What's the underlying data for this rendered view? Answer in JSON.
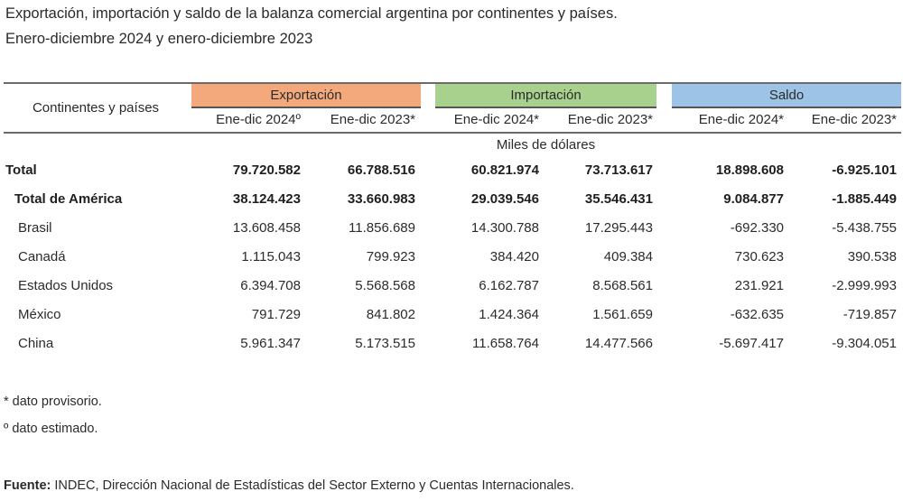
{
  "title": {
    "line1": "Exportación, importación y saldo de la balanza comercial argentina por continentes y países.",
    "line2": "Enero-diciembre 2024 y enero-diciembre 2023"
  },
  "table": {
    "stub_header": "Continentes y países",
    "groups": [
      {
        "label": "Exportación",
        "color": "#f4a97c"
      },
      {
        "label": "Importación",
        "color": "#a9d18e"
      },
      {
        "label": "Saldo",
        "color": "#9dc3e6"
      }
    ],
    "subheaders": [
      "Ene-dic 2024º",
      "Ene-dic 2023*",
      "Ene-dic 2024*",
      "Ene-dic 2023*",
      "Ene-dic 2024*",
      "Ene-dic 2023*"
    ],
    "units": "Miles de dólares",
    "rows": [
      {
        "label": "Total",
        "bold": true,
        "indent": 0,
        "values": [
          "79.720.582",
          "66.788.516",
          "60.821.974",
          "73.713.617",
          "18.898.608",
          "-6.925.101"
        ]
      },
      {
        "label": "Total de América",
        "bold": true,
        "indent": 1,
        "values": [
          "38.124.423",
          "33.660.983",
          "29.039.546",
          "35.546.431",
          "9.084.877",
          "-1.885.449"
        ]
      },
      {
        "label": "Brasil",
        "bold": false,
        "indent": 2,
        "values": [
          "13.608.458",
          "11.856.689",
          "14.300.788",
          "17.295.443",
          "-692.330",
          "-5.438.755"
        ]
      },
      {
        "label": "Canadá",
        "bold": false,
        "indent": 2,
        "values": [
          "1.115.043",
          "799.923",
          "384.420",
          "409.384",
          "730.623",
          "390.538"
        ]
      },
      {
        "label": "Estados Unidos",
        "bold": false,
        "indent": 2,
        "values": [
          "6.394.708",
          "5.568.568",
          "6.162.787",
          "8.568.561",
          "231.921",
          "-2.999.993"
        ]
      },
      {
        "label": "México",
        "bold": false,
        "indent": 2,
        "values": [
          "791.729",
          "841.802",
          "1.424.364",
          "1.561.659",
          "-632.635",
          "-719.857"
        ]
      },
      {
        "label": "China",
        "bold": false,
        "indent": 2,
        "values": [
          "5.961.347",
          "5.173.515",
          "11.658.764",
          "14.477.566",
          "-5.697.417",
          "-9.304.051"
        ]
      }
    ]
  },
  "notes": {
    "provisional": "* dato provisorio.",
    "estimated": "º dato estimado."
  },
  "source": {
    "label": "Fuente:",
    "text": " INDEC, Dirección Nacional de Estadísticas del Sector Externo y Cuentas Internacionales."
  }
}
